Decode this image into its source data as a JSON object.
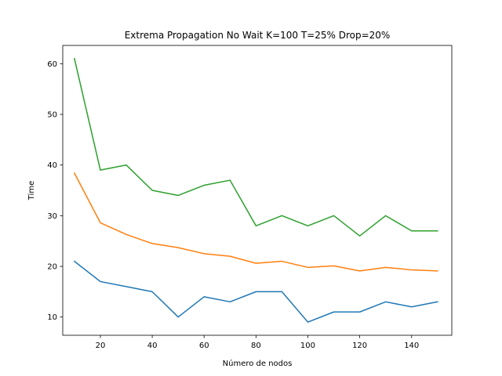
{
  "chart_data": {
    "type": "line",
    "title": "Extrema Propagation No Wait K=100 T=25% Drop=20%",
    "xlabel": "Número de nodos",
    "ylabel": "Time",
    "x": [
      10,
      20,
      30,
      40,
      50,
      60,
      70,
      80,
      90,
      100,
      110,
      120,
      130,
      140,
      150
    ],
    "xlim": [
      5.5,
      155.5
    ],
    "ylim": [
      6.4,
      63.6
    ],
    "xticks": [
      20,
      40,
      60,
      80,
      100,
      120,
      140
    ],
    "yticks": [
      10,
      20,
      30,
      40,
      50,
      60
    ],
    "grid": false,
    "legend": "none",
    "series": [
      {
        "color": "#1f77b4",
        "values": [
          21,
          17,
          16,
          15,
          10,
          14,
          13,
          15,
          15,
          9,
          11,
          11,
          13,
          12,
          13
        ]
      },
      {
        "color": "#ff7f0e",
        "values": [
          38.4,
          28.6,
          26.3,
          24.5,
          23.7,
          22.5,
          22.0,
          20.6,
          21.0,
          19.8,
          20.1,
          19.1,
          19.8,
          19.3,
          19.1
        ]
      },
      {
        "color": "#2ca02c",
        "values": [
          61,
          39,
          40,
          35,
          34,
          36,
          37,
          28,
          30,
          28,
          30,
          26,
          30,
          27,
          27
        ]
      }
    ]
  }
}
